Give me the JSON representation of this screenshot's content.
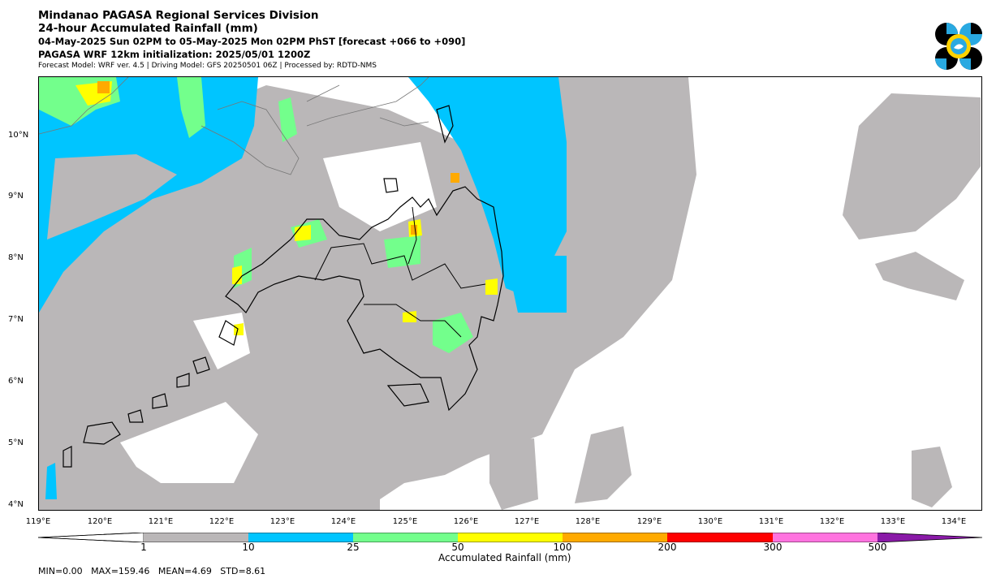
{
  "header": {
    "title": "Mindanao PAGASA Regional Services Division",
    "subtitle": "24-hour Accumulated Rainfall (mm)",
    "time_range": "04-May-2025 Sun 02PM to 05-May-2025 Mon 02PM PhST [forecast +066 to +090]",
    "initialization": "PAGASA WRF 12km initialization: 2025/05/01 1200Z",
    "meta": "Forecast Model: WRF ver. 4.5 | Driving Model: GFS 20250501 06Z | Processed by: RDTD-NMS"
  },
  "map": {
    "lat_labels": [
      "10°N",
      "9°N",
      "8°N",
      "7°N",
      "6°N",
      "5°N",
      "4°N"
    ],
    "lon_labels": [
      "119°E",
      "120°E",
      "121°E",
      "122°E",
      "123°E",
      "124°E",
      "125°E",
      "126°E",
      "127°E",
      "128°E",
      "129°E",
      "130°E",
      "131°E",
      "132°E",
      "133°E",
      "134°E"
    ],
    "lon_range": [
      119,
      134.5
    ],
    "lat_range": [
      3.9,
      11
    ]
  },
  "colorbar": {
    "title": "Accumulated Rainfall (mm)",
    "ticks": [
      "1",
      "10",
      "25",
      "50",
      "100",
      "200",
      "300",
      "500"
    ],
    "colors": {
      "lt1": "#ffffff",
      "1-10": "#bab7b8",
      "10-25": "#00c5ff",
      "25-50": "#73ff8c",
      "50-100": "#ffff00",
      "100-200": "#ffaa00",
      "200-300": "#ff0000",
      "300-500": "#ff73df",
      "gt500": "#8a1aa8"
    }
  },
  "stats": "MIN=0.00   MAX=159.46   MEAN=4.69   STD=8.61"
}
